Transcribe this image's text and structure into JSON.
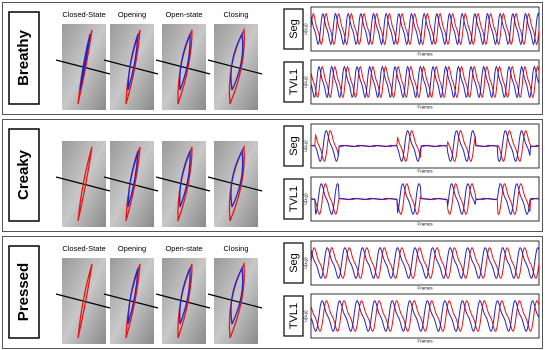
{
  "rows": [
    {
      "label": "Breathy",
      "columns": [
        "Closed-State",
        "Opening",
        "Open-state",
        "Closing"
      ],
      "plots": [
        {
          "label": "Seg",
          "y_label": "u(x,y)",
          "x_label": "Frames"
        },
        {
          "label": "TVL1",
          "y_label": "u(x,y)",
          "x_label": "Frames"
        }
      ]
    },
    {
      "label": "Creaky",
      "plots": [
        {
          "label": "Seg",
          "y_label": "u(x,y)",
          "x_label": "Frames"
        },
        {
          "label": "TVL1",
          "y_label": "u(x,y)",
          "x_label": "Frames"
        }
      ]
    },
    {
      "label": "Pressed",
      "columns": [
        "Closed-State",
        "Opening",
        "Open-state",
        "Closing"
      ],
      "plots": [
        {
          "label": "Seg",
          "y_label": "u(x,y)",
          "x_label": "Frames"
        },
        {
          "label": "TVL1",
          "y_label": "u(x,y)",
          "x_label": "Frames"
        }
      ]
    }
  ]
}
